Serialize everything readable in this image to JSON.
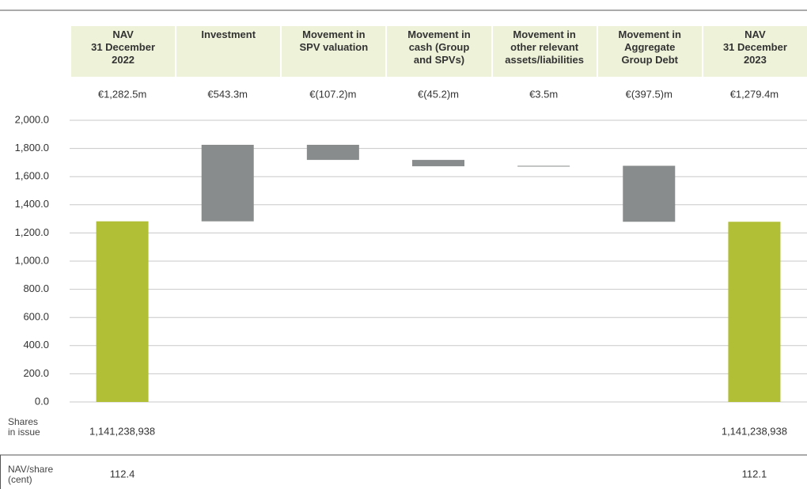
{
  "chart_data": {
    "type": "waterfall",
    "categories": [
      "NAV\n31 December\n2022",
      "Investment",
      "Movement in\nSPV valuation",
      "Movement in\ncash (Group\nand SPVs)",
      "Movement in\nother relevant\nassets/liabilities",
      "Movement in\nAggregate\nGroup Debt",
      "NAV\n31 December\n2023"
    ],
    "values": [
      1282.5,
      543.3,
      -107.2,
      -45.2,
      3.5,
      -397.5,
      1279.4
    ],
    "value_labels": [
      "€1,282.5m",
      "€543.3m",
      "€(107.2)m",
      "€(45.2)m",
      "€3.5m",
      "€(397.5)m",
      "€1,279.4m"
    ],
    "is_total": [
      true,
      false,
      false,
      false,
      false,
      false,
      true
    ],
    "total_color": "#b0bf35",
    "change_color": "#898c8c",
    "ylim": [
      0,
      2000
    ],
    "yticks": [
      {
        "value": 0,
        "label": "0.0"
      },
      {
        "value": 200,
        "label": "200.0"
      },
      {
        "value": 400,
        "label": "400.0"
      },
      {
        "value": 600,
        "label": "600.0"
      },
      {
        "value": 800,
        "label": "800.0"
      },
      {
        "value": 1000,
        "label": "1,000.0"
      },
      {
        "value": 1200,
        "label": "1,200.0"
      },
      {
        "value": 1400,
        "label": "1,400.0"
      },
      {
        "value": 1600,
        "label": "1,600.0"
      },
      {
        "value": 1800,
        "label": "1,800.0"
      },
      {
        "value": 2000,
        "label": "2,000.0"
      }
    ],
    "grid": true,
    "rows": [
      {
        "label": "Shares\nin issue",
        "values": [
          "1,141,238,938",
          null,
          null,
          null,
          null,
          null,
          "1,141,238,938"
        ]
      },
      {
        "label": "NAV/share\n(cent)",
        "values": [
          "112.4",
          null,
          null,
          null,
          null,
          null,
          "112.1"
        ]
      }
    ]
  }
}
